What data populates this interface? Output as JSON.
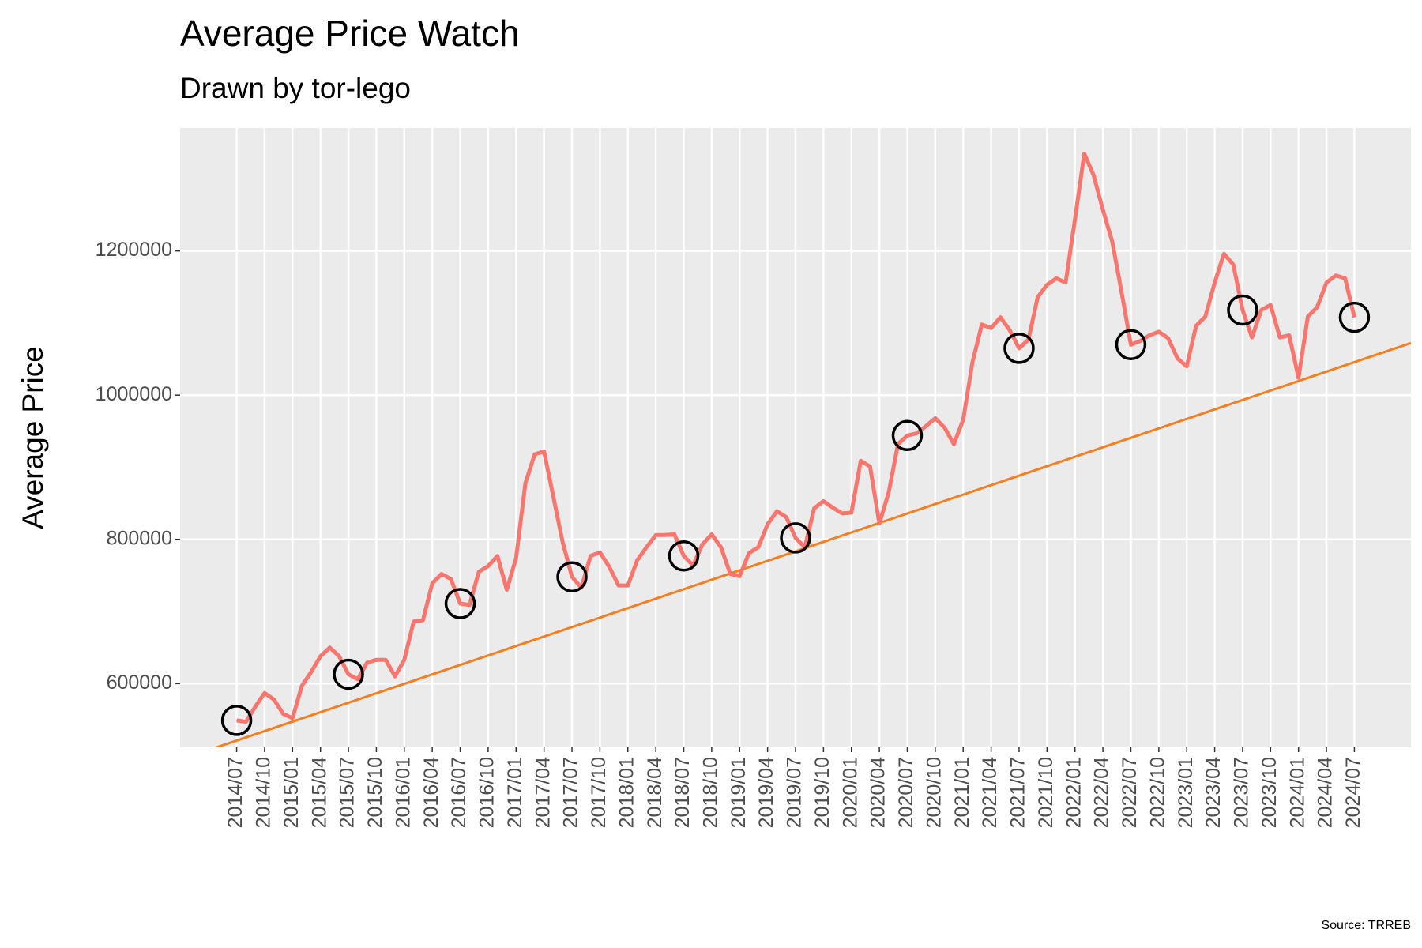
{
  "chart_data": {
    "type": "line",
    "title": "Average Price Watch",
    "subtitle": "Drawn by tor-lego",
    "y_label": "Average Price",
    "caption": "Source: TRREB",
    "categories": [
      "2014/07",
      null,
      null,
      "2014/10",
      null,
      null,
      "2015/01",
      null,
      null,
      "2015/04",
      null,
      null,
      "2015/07",
      null,
      null,
      "2015/10",
      null,
      null,
      "2016/01",
      null,
      null,
      "2016/04",
      null,
      null,
      "2016/07",
      null,
      null,
      "2016/10",
      null,
      null,
      "2017/01",
      null,
      null,
      "2017/04",
      null,
      null,
      "2017/07",
      null,
      null,
      "2017/10",
      null,
      null,
      "2018/01",
      null,
      null,
      "2018/04",
      null,
      null,
      "2018/07",
      null,
      null,
      "2018/10",
      null,
      null,
      "2019/01",
      null,
      null,
      "2019/04",
      null,
      null,
      "2019/07",
      null,
      null,
      "2019/10",
      null,
      null,
      "2020/01",
      null,
      null,
      "2020/04",
      null,
      null,
      "2020/07",
      null,
      null,
      "2020/10",
      null,
      null,
      "2021/01",
      null,
      null,
      "2021/04",
      null,
      null,
      "2021/07",
      null,
      null,
      "2021/10",
      null,
      null,
      "2022/01",
      null,
      null,
      "2022/04",
      null,
      null,
      "2022/07",
      null,
      null,
      "2022/10",
      null,
      null,
      "2023/01",
      null,
      null,
      "2023/04",
      null,
      null,
      "2023/07",
      null,
      null,
      "2023/10",
      null,
      null,
      "2024/01",
      null,
      null,
      "2024/04",
      null,
      null,
      "2024/07"
    ],
    "series": [
      {
        "color": "#f8766d",
        "values": [
          549000,
          547000,
          568000,
          587000,
          578000,
          558000,
          552000,
          597000,
          616000,
          638000,
          650000,
          638000,
          613000,
          606000,
          629000,
          633000,
          633000,
          610000,
          633000,
          686000,
          688000,
          739000,
          752000,
          745000,
          711000,
          709000,
          755000,
          763000,
          777000,
          730000,
          774000,
          878000,
          918000,
          922000,
          859000,
          796000,
          748000,
          733000,
          777000,
          782000,
          762000,
          736000,
          736000,
          771000,
          789000,
          806000,
          806000,
          807000,
          777000,
          764000,
          793000,
          807000,
          789000,
          752000,
          749000,
          781000,
          789000,
          821000,
          839000,
          831000,
          802000,
          789000,
          843000,
          853000,
          844000,
          836000,
          837000,
          909000,
          901000,
          822000,
          865000,
          932000,
          944000,
          947000,
          957000,
          968000,
          955000,
          932000,
          966000,
          1046000,
          1098000,
          1093000,
          1108000,
          1090000,
          1065000,
          1077000,
          1136000,
          1153000,
          1162000,
          1156000,
          1244000,
          1335000,
          1305000,
          1257000,
          1213000,
          1143000,
          1070000,
          1075000,
          1083000,
          1088000,
          1079000,
          1051000,
          1040000,
          1096000,
          1109000,
          1156000,
          1196000,
          1181000,
          1118000,
          1080000,
          1118000,
          1125000,
          1080000,
          1083000,
          1024000,
          1109000,
          1122000,
          1156000,
          1166000,
          1162000,
          1108000
        ]
      },
      {
        "color": "#000000",
        "marker": "circle",
        "values": [
          549000,
          null,
          null,
          null,
          null,
          null,
          null,
          null,
          null,
          null,
          null,
          null,
          613000,
          null,
          null,
          null,
          null,
          null,
          null,
          null,
          null,
          null,
          null,
          null,
          711000,
          null,
          null,
          null,
          null,
          null,
          null,
          null,
          null,
          null,
          null,
          null,
          748000,
          null,
          null,
          null,
          null,
          null,
          null,
          null,
          null,
          null,
          null,
          null,
          777000,
          null,
          null,
          null,
          null,
          null,
          null,
          null,
          null,
          null,
          null,
          null,
          802000,
          null,
          null,
          null,
          null,
          null,
          null,
          null,
          null,
          null,
          null,
          null,
          944000,
          null,
          null,
          null,
          null,
          null,
          null,
          null,
          null,
          null,
          null,
          null,
          1065000,
          null,
          null,
          null,
          null,
          null,
          null,
          null,
          null,
          null,
          null,
          null,
          1070000,
          null,
          null,
          null,
          null,
          null,
          null,
          null,
          null,
          null,
          null,
          null,
          1118000,
          null,
          null,
          null,
          null,
          null,
          null,
          null,
          null,
          null,
          null,
          null,
          1108000
        ]
      }
    ],
    "trend": {
      "intercept": 521000,
      "slope": 4373,
      "color": "#f47f20"
    },
    "ylim": [
      511600,
      1370500
    ],
    "yticks": [
      600000,
      800000,
      1000000,
      1200000
    ],
    "grid": true
  }
}
